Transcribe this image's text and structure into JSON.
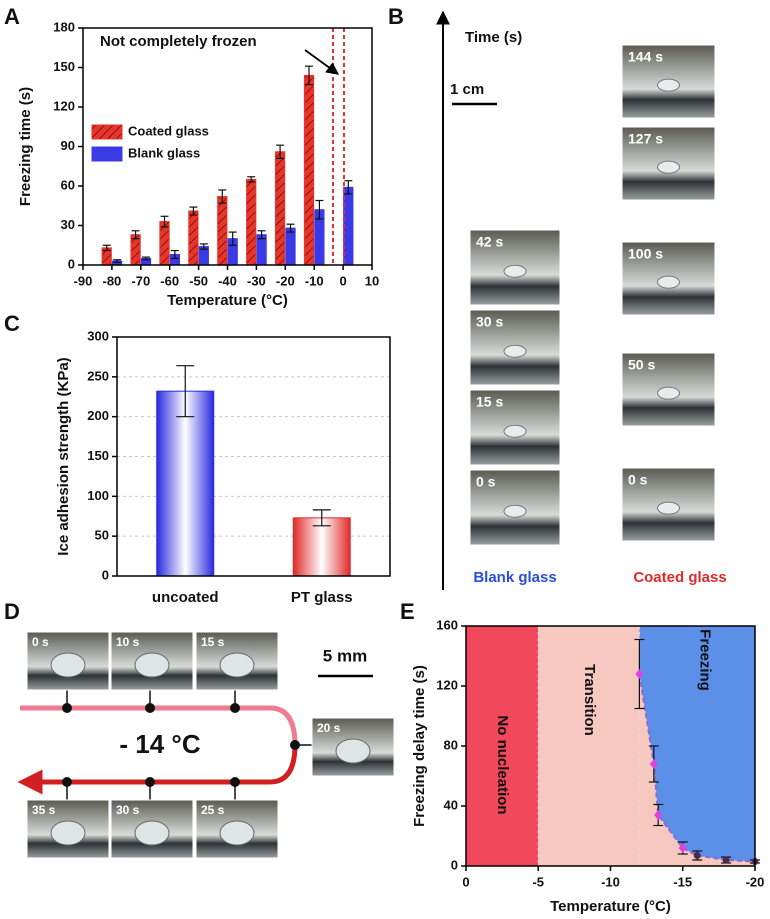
{
  "panel_labels": [
    "A",
    "B",
    "C",
    "D",
    "E"
  ],
  "chart_data": [
    {
      "type": "bar",
      "xlabel": "Temperature (°C)",
      "ylabel": "Freezing time (s)",
      "x": [
        -80,
        -70,
        -60,
        -50,
        -40,
        -30,
        -20,
        -10,
        0
      ],
      "series": [
        {
          "name": "Coated glass",
          "color": "#e8352a",
          "values": [
            13,
            23,
            33,
            41,
            52,
            65,
            86,
            144,
            null
          ],
          "errors": [
            2,
            3,
            4,
            3,
            5,
            2,
            5,
            7,
            null
          ]
        },
        {
          "name": "Blank glass",
          "color": "#3a3ae6",
          "values": [
            3,
            5,
            8,
            14,
            20,
            23,
            28,
            42,
            59
          ],
          "errors": [
            1,
            1,
            3,
            2,
            5,
            3,
            3,
            7,
            5
          ]
        }
      ],
      "xlim": [
        -90,
        10
      ],
      "xticks": [
        -90,
        -80,
        -70,
        -60,
        -50,
        -40,
        -30,
        -20,
        -10,
        0,
        10
      ],
      "ylim": [
        0,
        180
      ],
      "yticks": [
        0,
        30,
        60,
        90,
        120,
        150,
        180
      ],
      "reference_lines": [
        -3.5,
        0.3
      ],
      "reference_color": "#e0303a",
      "annotation": "Not completely frozen"
    },
    {
      "type": "bar",
      "ylabel": "Ice adhesion strength (KPa)",
      "categories": [
        "uncoated",
        "PT glass"
      ],
      "values": [
        232,
        73
      ],
      "errors": [
        32,
        10
      ],
      "colors": [
        "#2a2ae0",
        "#e02a2a"
      ],
      "ylim": [
        0,
        300
      ],
      "yticks": [
        0,
        50,
        100,
        150,
        200,
        250,
        300
      ],
      "grid": true
    },
    {
      "type": "scatter",
      "xlabel": "Temperature (°C)",
      "ylabel": "Freezing delay time (s)",
      "x": [
        -12,
        -13,
        -13.3,
        -15,
        -16,
        -18,
        -20
      ],
      "values": [
        128,
        68,
        34,
        12,
        7,
        4,
        3
      ],
      "errors": [
        23,
        12,
        7,
        4,
        3,
        2,
        1
      ],
      "colors": [
        "#e040e0",
        "#e040e0",
        "#e040e0",
        "#e040e0",
        "#4a2a4a",
        "#4a2a4a",
        "#4a2a4a"
      ],
      "line_color": "#8a6ad0",
      "xlim": [
        0,
        -20
      ],
      "xticks": [
        0,
        -5,
        -10,
        -15,
        -20
      ],
      "ylim": [
        0,
        160
      ],
      "yticks": [
        0,
        40,
        80,
        120,
        160
      ],
      "regions": [
        {
          "label": "No nucleation",
          "from": 0,
          "to": -5,
          "color": "#f2485c"
        },
        {
          "label": "Transition",
          "from": -5,
          "to": -20,
          "color": "#f7c8c0"
        },
        {
          "label": "Freezing",
          "from": -12,
          "to": -20,
          "color": "#5b8fe8"
        }
      ]
    }
  ],
  "panel_B": {
    "axis_label": "Time (s)",
    "scale_bar": "1 cm",
    "blank_frames": [
      "42 s",
      "30 s",
      "15 s",
      "0 s"
    ],
    "coated_frames": [
      "144 s",
      "127 s",
      "100 s",
      "50 s",
      "0 s"
    ],
    "blank_label": "Blank glass",
    "coated_label": "Coated glass"
  },
  "panel_D": {
    "frames": [
      "0 s",
      "10 s",
      "15 s",
      "20 s",
      "25 s",
      "30 s",
      "35 s"
    ],
    "scale_bar": "5 mm",
    "temperature": "- 14 °C"
  }
}
